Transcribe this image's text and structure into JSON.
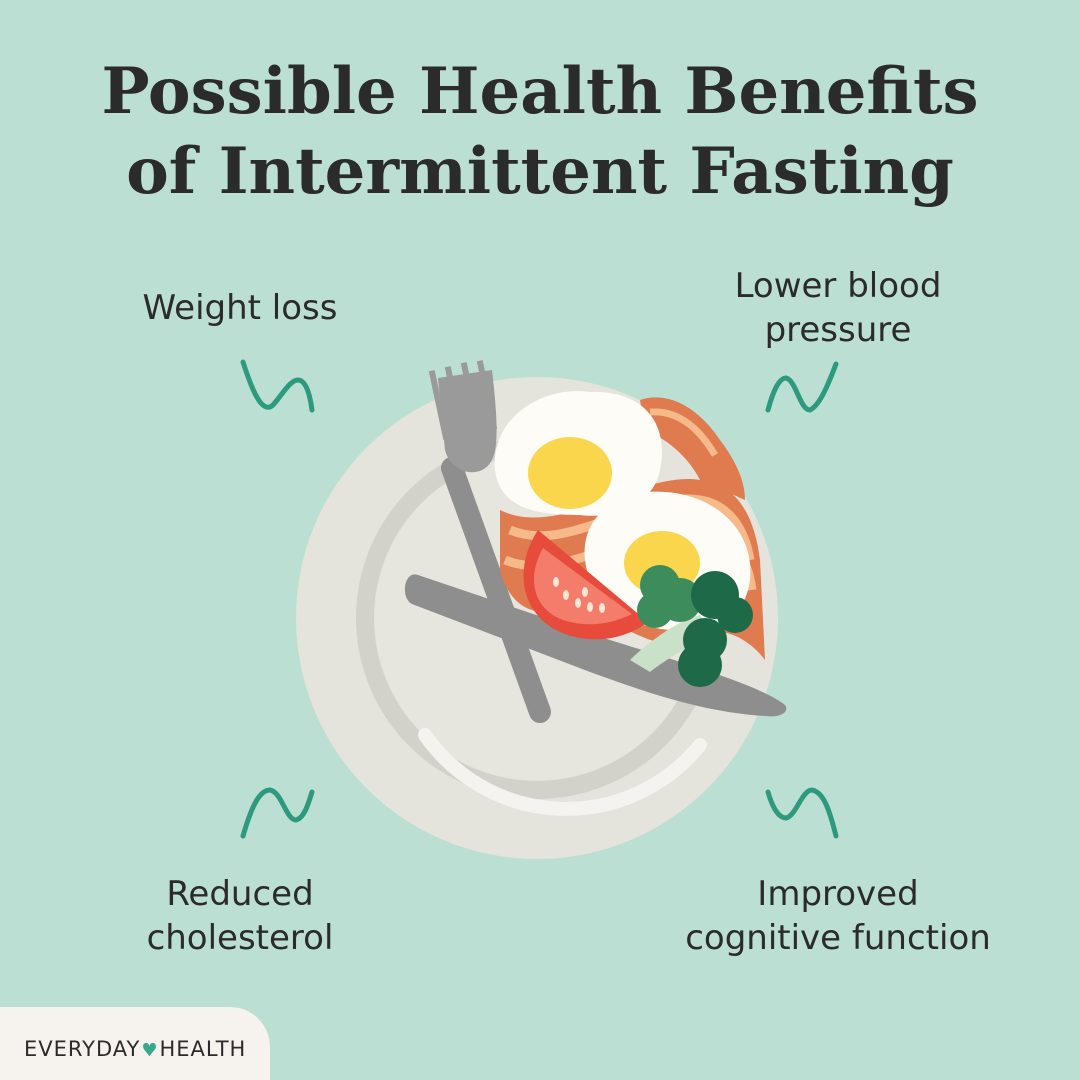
{
  "title": {
    "line1": "Possible Health Benefits",
    "line2": "of Intermittent Fasting"
  },
  "benefits": {
    "weight_loss": "Weight loss",
    "blood_pressure_line1": "Lower blood",
    "blood_pressure_line2": "pressure",
    "cholesterol_line1": "Reduced",
    "cholesterol_line2": "cholesterol",
    "cognitive_line1": "Improved",
    "cognitive_line2": "cognitive function"
  },
  "brand": {
    "word1": "EVERYDAY",
    "word2": "HEALTH",
    "heart_icon": "heart-icon"
  },
  "colors": {
    "background": "#bcdfd3",
    "accent": "#2e9a7d",
    "text": "#2b2b2b"
  }
}
